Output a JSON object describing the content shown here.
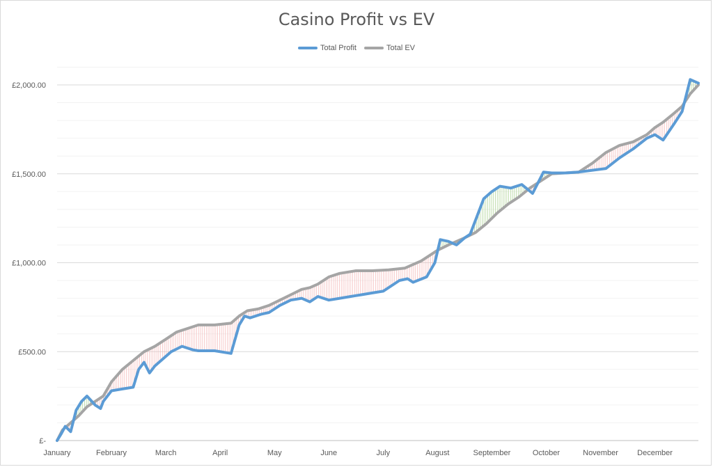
{
  "chart_data": {
    "type": "line",
    "title": "Casino Profit vs EV",
    "xlabel": "",
    "ylabel": "",
    "ylim": [
      0,
      2000
    ],
    "y_ticks": [
      {
        "value": 0,
        "label": "£-"
      },
      {
        "value": 500,
        "label": "£500.00"
      },
      {
        "value": 1000,
        "label": "£1,000.00"
      },
      {
        "value": 1500,
        "label": "£1,500.00"
      },
      {
        "value": 2000,
        "label": "£2,000.00"
      }
    ],
    "x_ticks": [
      {
        "value": 0,
        "label": "January"
      },
      {
        "value": 1,
        "label": "February"
      },
      {
        "value": 2,
        "label": "March"
      },
      {
        "value": 3,
        "label": "April"
      },
      {
        "value": 4,
        "label": "May"
      },
      {
        "value": 5,
        "label": "June"
      },
      {
        "value": 6,
        "label": "July"
      },
      {
        "value": 7,
        "label": "August"
      },
      {
        "value": 8,
        "label": "September"
      },
      {
        "value": 9,
        "label": "October"
      },
      {
        "value": 10,
        "label": "November"
      },
      {
        "value": 11,
        "label": "December"
      }
    ],
    "legend_position": "top",
    "grid": true,
    "series": [
      {
        "name": "Total Profit",
        "color": "#5b9bd5",
        "x": [
          0,
          0.08,
          0.15,
          0.25,
          0.35,
          0.45,
          0.55,
          0.7,
          0.8,
          0.85,
          1.0,
          1.2,
          1.4,
          1.5,
          1.6,
          1.7,
          1.8,
          1.95,
          2.1,
          2.3,
          2.5,
          2.6,
          2.9,
          3.2,
          3.35,
          3.45,
          3.55,
          3.75,
          3.9,
          4.1,
          4.3,
          4.5,
          4.65,
          4.8,
          5.0,
          5.2,
          5.4,
          5.6,
          5.8,
          6.0,
          6.3,
          6.45,
          6.55,
          6.8,
          6.95,
          7.05,
          7.2,
          7.35,
          7.5,
          7.6,
          7.7,
          7.85,
          8.0,
          8.15,
          8.35,
          8.55,
          8.75,
          8.95,
          9.1,
          9.35,
          9.6,
          9.85,
          10.1,
          10.35,
          10.6,
          10.85,
          11.0,
          11.15,
          11.35,
          11.5,
          11.65,
          11.8
        ],
        "values": [
          0,
          40,
          80,
          50,
          170,
          220,
          250,
          200,
          180,
          220,
          280,
          290,
          300,
          400,
          440,
          380,
          420,
          460,
          500,
          530,
          510,
          505,
          505,
          490,
          650,
          700,
          690,
          710,
          720,
          760,
          790,
          800,
          780,
          810,
          790,
          800,
          810,
          820,
          830,
          840,
          900,
          910,
          890,
          920,
          1000,
          1130,
          1120,
          1100,
          1140,
          1160,
          1240,
          1360,
          1400,
          1430,
          1420,
          1440,
          1390,
          1510,
          1505,
          1505,
          1510,
          1520,
          1530,
          1590,
          1640,
          1700,
          1720,
          1690,
          1780,
          1850,
          2030,
          2010
        ]
      },
      {
        "name": "Total EV",
        "color": "#a5a5a5",
        "x": [
          0,
          0.1,
          0.25,
          0.4,
          0.55,
          0.7,
          0.85,
          1.0,
          1.2,
          1.4,
          1.6,
          1.8,
          2.0,
          2.2,
          2.4,
          2.6,
          2.9,
          3.2,
          3.35,
          3.5,
          3.7,
          3.9,
          4.1,
          4.3,
          4.5,
          4.65,
          4.8,
          5.0,
          5.2,
          5.5,
          5.8,
          6.1,
          6.4,
          6.55,
          6.7,
          6.85,
          7.0,
          7.2,
          7.35,
          7.5,
          7.7,
          7.9,
          8.1,
          8.3,
          8.5,
          8.7,
          8.9,
          9.1,
          9.35,
          9.6,
          9.85,
          10.1,
          10.35,
          10.6,
          10.85,
          11.0,
          11.15,
          11.35,
          11.5,
          11.65,
          11.8
        ],
        "values": [
          0,
          60,
          100,
          140,
          190,
          220,
          250,
          330,
          400,
          450,
          500,
          530,
          570,
          610,
          630,
          650,
          650,
          660,
          700,
          730,
          740,
          760,
          790,
          820,
          850,
          860,
          880,
          920,
          940,
          955,
          955,
          960,
          970,
          990,
          1010,
          1040,
          1070,
          1100,
          1120,
          1140,
          1170,
          1220,
          1280,
          1330,
          1370,
          1420,
          1460,
          1500,
          1505,
          1510,
          1560,
          1620,
          1660,
          1680,
          1720,
          1760,
          1790,
          1840,
          1880,
          1950,
          2000
        ]
      }
    ]
  }
}
